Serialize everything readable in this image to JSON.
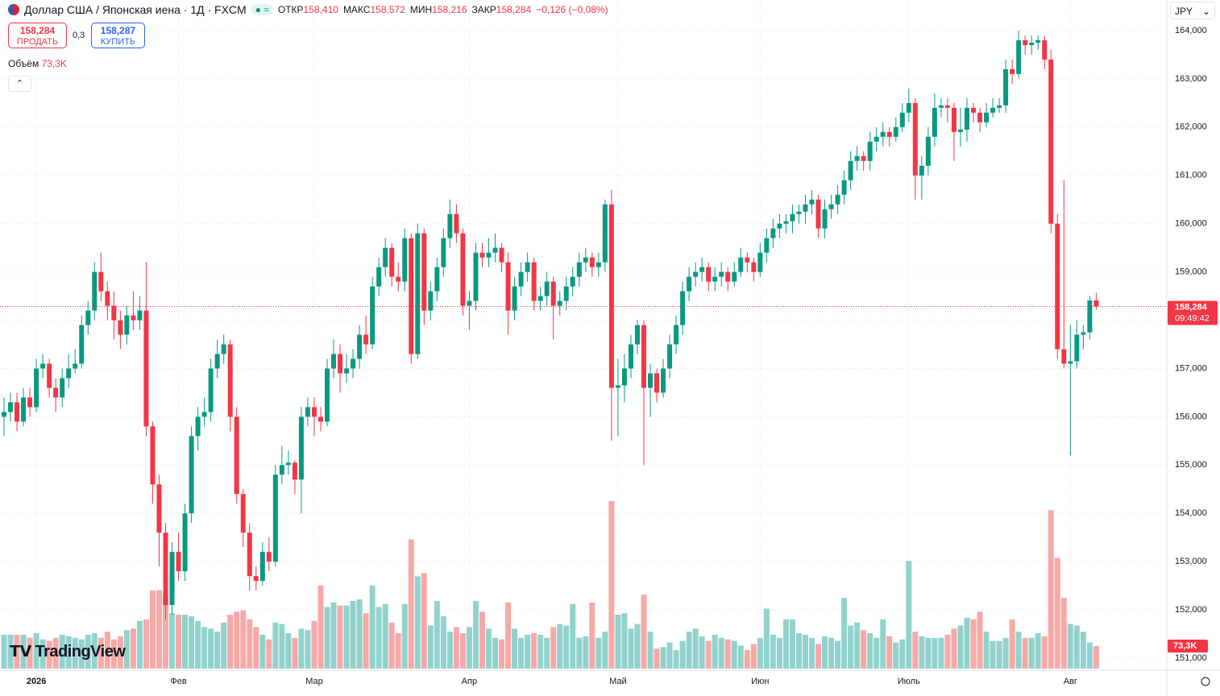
{
  "header": {
    "symbol": "Доллар США / Японская иена · 1Д · FXCM",
    "open_label": "ОТКР",
    "open": "158,410",
    "high_label": "МАКС",
    "high": "158,572",
    "low_label": "МИН",
    "low": "158,216",
    "close_label": "ЗАКР",
    "close": "158,284",
    "change": "−0,126 (−0,08%)",
    "sell_price": "158,284",
    "sell": "ПРОДАТЬ",
    "spread": "0,3",
    "buy_price": "158,287",
    "buy": "КУПИТЬ",
    "volume_label": "Объём",
    "volume_value": "73,3K",
    "currency": "JPY",
    "logo": "TradingView"
  },
  "chart_data": {
    "type": "candlestick",
    "ylim": [
      150.75,
      164.3
    ],
    "yticks": [
      {
        "value": 151,
        "label": "151,000"
      },
      {
        "value": 152,
        "label": "152,000"
      },
      {
        "value": 153,
        "label": "153,000"
      },
      {
        "value": 154,
        "label": "154,000"
      },
      {
        "value": 155,
        "label": "155,000"
      },
      {
        "value": 156,
        "label": "156,000"
      },
      {
        "value": 157,
        "label": "157,000"
      },
      {
        "value": 158,
        "label": "158,000"
      },
      {
        "value": 159,
        "label": "159,000"
      },
      {
        "value": 160,
        "label": "160,000"
      },
      {
        "value": 161,
        "label": "161,000"
      },
      {
        "value": 162,
        "label": "162,000"
      },
      {
        "value": 163,
        "label": "163,000"
      },
      {
        "value": 164,
        "label": "164,000"
      }
    ],
    "grid": true,
    "up_color": "#089981",
    "down_color": "#f23645",
    "volume_up_color": "#92d2cc",
    "volume_down_color": "#f7a9a7",
    "categories": [
      null,
      null,
      null,
      null,
      null,
      "2026",
      null,
      null,
      null,
      null,
      null,
      null,
      null,
      null,
      null,
      null,
      null,
      null,
      null,
      null,
      null,
      null,
      null,
      null,
      null,
      null,
      null,
      "Фев",
      null,
      null,
      null,
      null,
      null,
      null,
      null,
      null,
      null,
      null,
      null,
      null,
      null,
      null,
      null,
      null,
      null,
      null,
      null,
      null,
      "Мар",
      null,
      null,
      null,
      null,
      null,
      null,
      null,
      null,
      null,
      null,
      null,
      null,
      null,
      null,
      null,
      null,
      null,
      null,
      null,
      null,
      null,
      null,
      null,
      "Апр",
      null,
      null,
      null,
      null,
      null,
      null,
      null,
      null,
      null,
      null,
      null,
      null,
      null,
      null,
      null,
      null,
      null,
      null,
      null,
      null,
      null,
      null,
      "Май",
      null,
      null,
      null,
      null,
      null,
      null,
      null,
      null,
      null,
      null,
      null,
      null,
      null,
      null,
      null,
      null,
      null,
      null,
      null,
      null,
      null,
      "Июн",
      null,
      null,
      null,
      null,
      null,
      null,
      null,
      null,
      null,
      null,
      null,
      null,
      null,
      null,
      null,
      null,
      null,
      null,
      null,
      null,
      null,
      null,
      "Июль",
      null,
      null,
      null,
      null,
      null,
      null,
      null,
      null,
      null,
      null,
      null,
      null,
      null,
      null,
      null,
      null,
      null,
      null,
      null,
      null,
      null,
      null,
      null,
      null,
      "Авг",
      null,
      null,
      null,
      null
    ],
    "ohlc": [
      [
        156.0,
        156.4,
        155.6,
        156.1
      ],
      [
        156.1,
        156.5,
        155.9,
        156.3
      ],
      [
        156.3,
        156.5,
        155.7,
        155.9
      ],
      [
        155.9,
        156.6,
        155.8,
        156.4
      ],
      [
        156.4,
        156.6,
        156.0,
        156.2
      ],
      [
        156.2,
        157.2,
        156.1,
        157.0
      ],
      [
        157.0,
        157.3,
        156.8,
        157.1
      ],
      [
        157.1,
        157.2,
        156.4,
        156.6
      ],
      [
        156.6,
        156.8,
        156.1,
        156.4
      ],
      [
        156.4,
        157.0,
        156.2,
        156.8
      ],
      [
        156.8,
        157.3,
        156.6,
        157.0
      ],
      [
        157.0,
        157.4,
        156.9,
        157.1
      ],
      [
        157.1,
        158.1,
        157.0,
        157.9
      ],
      [
        157.9,
        158.4,
        157.7,
        158.2
      ],
      [
        158.2,
        159.2,
        158.0,
        159.0
      ],
      [
        159.0,
        159.4,
        158.4,
        158.6
      ],
      [
        158.6,
        158.8,
        158.0,
        158.3
      ],
      [
        158.3,
        158.6,
        157.6,
        158.0
      ],
      [
        158.0,
        158.2,
        157.4,
        157.7
      ],
      [
        157.7,
        158.3,
        157.5,
        158.1
      ],
      [
        158.1,
        158.6,
        157.8,
        158.0
      ],
      [
        158.0,
        158.5,
        157.8,
        158.2
      ],
      [
        158.2,
        159.2,
        155.6,
        155.8
      ],
      [
        155.8,
        155.9,
        154.2,
        154.6
      ],
      [
        154.6,
        154.8,
        152.9,
        153.6
      ],
      [
        153.6,
        153.8,
        151.8,
        152.1
      ],
      [
        152.1,
        153.4,
        151.9,
        153.2
      ],
      [
        153.2,
        153.6,
        152.6,
        152.8
      ],
      [
        152.8,
        154.2,
        152.6,
        154.0
      ],
      [
        154.0,
        155.8,
        153.8,
        155.6
      ],
      [
        155.6,
        156.2,
        155.3,
        156.0
      ],
      [
        156.0,
        156.4,
        155.8,
        156.1
      ],
      [
        156.1,
        157.2,
        155.9,
        157.0
      ],
      [
        157.0,
        157.6,
        156.8,
        157.3
      ],
      [
        157.3,
        157.7,
        157.1,
        157.5
      ],
      [
        157.5,
        157.6,
        155.7,
        156.0
      ],
      [
        156.0,
        156.2,
        154.2,
        154.4
      ],
      [
        154.4,
        154.5,
        153.3,
        153.6
      ],
      [
        153.6,
        153.8,
        152.4,
        152.7
      ],
      [
        152.7,
        152.9,
        152.4,
        152.6
      ],
      [
        152.6,
        153.4,
        152.5,
        153.2
      ],
      [
        153.2,
        153.5,
        152.8,
        153.0
      ],
      [
        153.0,
        155.0,
        152.9,
        154.8
      ],
      [
        154.8,
        155.4,
        154.6,
        155.0
      ],
      [
        155.0,
        155.3,
        154.8,
        155.05
      ],
      [
        155.05,
        155.1,
        154.4,
        154.7
      ],
      [
        154.7,
        156.2,
        154.0,
        156.0
      ],
      [
        156.0,
        156.4,
        155.8,
        156.2
      ],
      [
        156.2,
        156.4,
        155.6,
        156.0
      ],
      [
        156.0,
        156.2,
        155.7,
        155.9
      ],
      [
        155.9,
        157.2,
        155.8,
        157.0
      ],
      [
        157.0,
        157.6,
        156.8,
        157.3
      ],
      [
        157.3,
        157.5,
        156.5,
        156.9
      ],
      [
        156.9,
        157.3,
        156.7,
        157.0
      ],
      [
        157.0,
        157.4,
        156.8,
        157.2
      ],
      [
        157.2,
        157.9,
        157.0,
        157.7
      ],
      [
        157.7,
        158.1,
        157.3,
        157.5
      ],
      [
        157.5,
        158.9,
        157.4,
        158.7
      ],
      [
        158.7,
        159.3,
        158.5,
        159.1
      ],
      [
        159.1,
        159.7,
        158.9,
        159.5
      ],
      [
        159.5,
        159.6,
        158.7,
        158.9
      ],
      [
        158.9,
        159.2,
        158.6,
        158.8
      ],
      [
        158.8,
        159.9,
        158.6,
        159.7
      ],
      [
        159.7,
        159.8,
        157.1,
        157.3
      ],
      [
        157.3,
        160.0,
        157.2,
        159.8
      ],
      [
        159.8,
        159.9,
        157.9,
        158.2
      ],
      [
        158.2,
        158.8,
        158.0,
        158.6
      ],
      [
        158.6,
        159.3,
        158.4,
        159.1
      ],
      [
        159.1,
        159.9,
        158.9,
        159.7
      ],
      [
        159.7,
        160.5,
        159.5,
        160.2
      ],
      [
        160.2,
        160.4,
        159.6,
        159.8
      ],
      [
        159.8,
        159.9,
        158.1,
        158.3
      ],
      [
        158.3,
        158.6,
        157.8,
        158.4
      ],
      [
        158.4,
        159.6,
        158.2,
        159.4
      ],
      [
        159.4,
        159.6,
        159.1,
        159.3
      ],
      [
        159.3,
        159.7,
        159.1,
        159.4
      ],
      [
        159.4,
        159.8,
        159.2,
        159.5
      ],
      [
        159.5,
        159.6,
        159.0,
        159.2
      ],
      [
        159.2,
        159.4,
        157.7,
        158.2
      ],
      [
        158.2,
        158.9,
        158.0,
        158.7
      ],
      [
        158.7,
        159.2,
        158.5,
        159.0
      ],
      [
        159.0,
        159.4,
        158.8,
        159.2
      ],
      [
        159.2,
        159.3,
        158.2,
        158.4
      ],
      [
        158.4,
        158.7,
        158.2,
        158.5
      ],
      [
        158.5,
        159.0,
        158.3,
        158.8
      ],
      [
        158.8,
        158.9,
        157.6,
        158.3
      ],
      [
        158.3,
        158.6,
        158.1,
        158.4
      ],
      [
        158.4,
        158.9,
        158.2,
        158.7
      ],
      [
        158.7,
        159.1,
        158.5,
        158.9
      ],
      [
        158.9,
        159.4,
        158.7,
        159.2
      ],
      [
        159.2,
        159.5,
        159.0,
        159.3
      ],
      [
        159.3,
        159.4,
        158.9,
        159.1
      ],
      [
        159.1,
        159.4,
        158.9,
        159.2
      ],
      [
        159.2,
        160.5,
        159.0,
        160.4
      ],
      [
        160.4,
        160.7,
        155.5,
        156.6
      ],
      [
        156.6,
        157.2,
        155.6,
        156.65
      ],
      [
        156.65,
        157.3,
        156.3,
        157.0
      ],
      [
        157.0,
        157.7,
        156.8,
        157.5
      ],
      [
        157.5,
        158.0,
        157.3,
        157.9
      ],
      [
        157.9,
        158.0,
        155.0,
        156.6
      ],
      [
        156.6,
        157.1,
        156.0,
        156.9
      ],
      [
        156.9,
        157.0,
        156.3,
        156.5
      ],
      [
        156.5,
        157.2,
        156.4,
        157.0
      ],
      [
        157.0,
        157.7,
        156.8,
        157.5
      ],
      [
        157.5,
        158.1,
        157.3,
        157.9
      ],
      [
        157.9,
        158.8,
        157.7,
        158.6
      ],
      [
        158.6,
        159.1,
        158.4,
        158.9
      ],
      [
        158.9,
        159.2,
        158.7,
        159.0
      ],
      [
        159.0,
        159.3,
        158.8,
        159.1
      ],
      [
        159.1,
        159.2,
        158.6,
        158.8
      ],
      [
        158.8,
        159.1,
        158.6,
        158.9
      ],
      [
        158.9,
        159.2,
        158.7,
        159.0
      ],
      [
        159.0,
        159.1,
        158.6,
        158.8
      ],
      [
        158.8,
        159.2,
        158.7,
        159.0
      ],
      [
        159.0,
        159.5,
        158.9,
        159.3
      ],
      [
        159.3,
        159.4,
        159.0,
        159.2
      ],
      [
        159.2,
        159.3,
        158.8,
        159.0
      ],
      [
        159.0,
        159.6,
        158.9,
        159.4
      ],
      [
        159.4,
        159.9,
        159.2,
        159.7
      ],
      [
        159.7,
        160.1,
        159.5,
        159.9
      ],
      [
        159.9,
        160.2,
        159.7,
        160.0
      ],
      [
        160.0,
        160.2,
        159.8,
        160.05
      ],
      [
        160.05,
        160.4,
        159.8,
        160.2
      ],
      [
        160.2,
        160.4,
        160.0,
        160.25
      ],
      [
        160.25,
        160.6,
        160.0,
        160.4
      ],
      [
        160.4,
        160.7,
        160.2,
        160.5
      ],
      [
        160.5,
        160.6,
        159.7,
        159.9
      ],
      [
        159.9,
        160.5,
        159.7,
        160.3
      ],
      [
        160.3,
        160.6,
        160.1,
        160.4
      ],
      [
        160.4,
        160.8,
        160.2,
        160.6
      ],
      [
        160.6,
        161.1,
        160.4,
        160.9
      ],
      [
        160.9,
        161.5,
        160.7,
        161.3
      ],
      [
        161.3,
        161.6,
        161.1,
        161.4
      ],
      [
        161.4,
        161.5,
        161.1,
        161.3
      ],
      [
        161.3,
        161.9,
        161.1,
        161.7
      ],
      [
        161.7,
        162.0,
        161.5,
        161.8
      ],
      [
        161.8,
        162.1,
        161.6,
        161.9
      ],
      [
        161.9,
        162.0,
        161.6,
        161.8
      ],
      [
        161.8,
        162.2,
        161.7,
        162.0
      ],
      [
        162.0,
        162.5,
        161.9,
        162.3
      ],
      [
        162.3,
        162.8,
        162.1,
        162.5
      ],
      [
        162.5,
        162.6,
        160.5,
        161.0
      ],
      [
        161.0,
        161.4,
        160.5,
        161.2
      ],
      [
        161.2,
        162.0,
        161.0,
        161.8
      ],
      [
        161.8,
        162.7,
        161.6,
        162.4
      ],
      [
        162.4,
        162.6,
        162.2,
        162.45
      ],
      [
        162.45,
        162.6,
        162.1,
        162.4
      ],
      [
        162.4,
        162.5,
        161.3,
        161.9
      ],
      [
        161.9,
        162.4,
        161.6,
        161.95
      ],
      [
        161.95,
        162.6,
        161.7,
        162.4
      ],
      [
        162.4,
        162.5,
        162.1,
        162.3
      ],
      [
        162.3,
        162.4,
        161.9,
        162.1
      ],
      [
        162.1,
        162.5,
        162.0,
        162.3
      ],
      [
        162.3,
        162.6,
        162.2,
        162.4
      ],
      [
        162.4,
        162.6,
        162.3,
        162.45
      ],
      [
        162.45,
        163.4,
        162.3,
        163.2
      ],
      [
        163.2,
        163.4,
        162.9,
        163.1
      ],
      [
        163.1,
        164.0,
        163.0,
        163.8
      ],
      [
        163.8,
        163.9,
        163.5,
        163.7
      ],
      [
        163.7,
        163.9,
        163.5,
        163.75
      ],
      [
        163.75,
        163.9,
        163.6,
        163.8
      ],
      [
        163.8,
        163.9,
        163.2,
        163.4
      ],
      [
        163.4,
        163.6,
        159.8,
        160.0
      ],
      [
        160.0,
        160.2,
        157.2,
        157.4
      ],
      [
        157.4,
        160.9,
        157.0,
        157.1
      ],
      [
        157.1,
        157.9,
        155.2,
        157.15
      ],
      [
        157.15,
        158.0,
        157.0,
        157.7
      ],
      [
        157.7,
        157.9,
        157.4,
        157.75
      ],
      [
        157.75,
        158.5,
        157.6,
        158.41
      ],
      [
        158.41,
        158.572,
        158.216,
        158.284
      ]
    ],
    "volume": [
      110,
      110,
      110,
      110,
      100,
      115,
      95,
      90,
      100,
      110,
      105,
      100,
      95,
      110,
      115,
      100,
      120,
      95,
      105,
      125,
      130,
      155,
      160,
      254,
      255,
      240,
      180,
      175,
      175,
      170,
      155,
      135,
      130,
      120,
      150,
      175,
      185,
      190,
      160,
      135,
      110,
      95,
      150,
      145,
      115,
      100,
      130,
      125,
      155,
      270,
      200,
      215,
      205,
      205,
      220,
      225,
      180,
      270,
      200,
      210,
      150,
      115,
      210,
      420,
      300,
      310,
      140,
      220,
      170,
      120,
      135,
      115,
      135,
      220,
      185,
      130,
      100,
      95,
      215,
      130,
      100,
      110,
      115,
      110,
      100,
      135,
      145,
      140,
      210,
      100,
      105,
      215,
      100,
      120,
      545,
      175,
      180,
      130,
      145,
      240,
      120,
      65,
      70,
      85,
      60,
      90,
      120,
      130,
      105,
      90,
      110,
      100,
      95,
      90,
      75,
      60,
      80,
      100,
      195,
      110,
      100,
      160,
      160,
      115,
      110,
      100,
      80,
      105,
      100,
      90,
      230,
      140,
      150,
      125,
      115,
      100,
      160,
      105,
      85,
      95,
      350,
      120,
      105,
      100,
      100,
      100,
      110,
      130,
      140,
      165,
      160,
      185,
      120,
      90,
      90,
      100,
      160,
      120,
      100,
      100,
      115,
      105,
      515,
      360,
      230,
      145,
      140,
      120,
      85,
      73.3
    ],
    "last_price_label": "158,284",
    "countdown": "09:49:42",
    "volume_tag": "73,3K"
  }
}
